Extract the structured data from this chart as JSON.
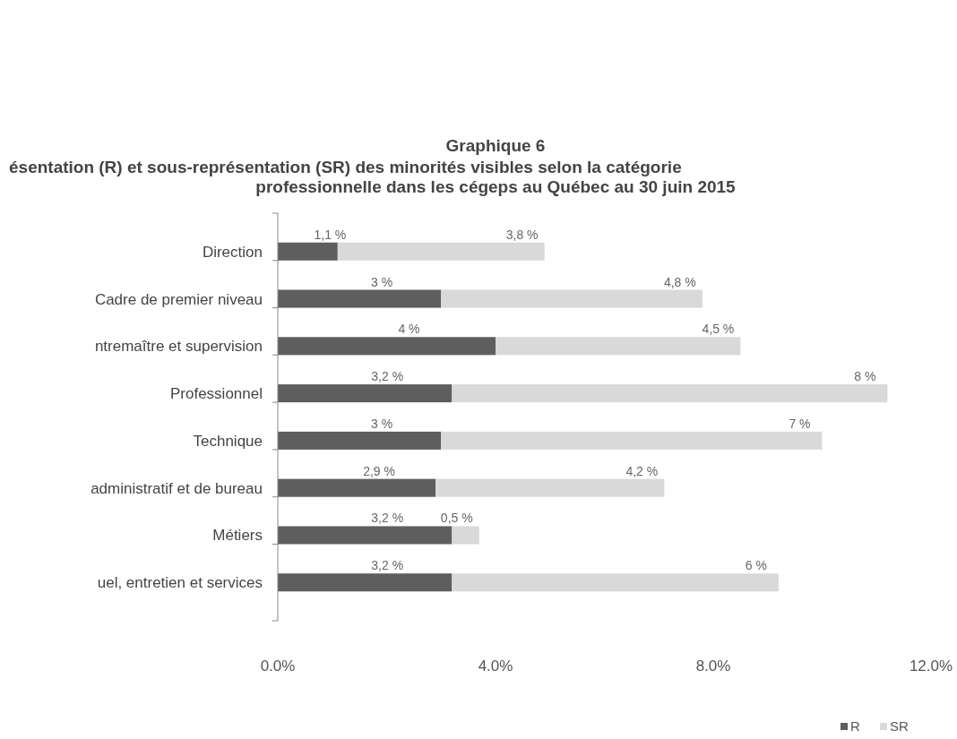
{
  "chart_data": {
    "type": "bar",
    "orientation": "horizontal",
    "stacked": true,
    "title": "Graphique 6",
    "subtitle": "ésentation (R) et sous-représentation (SR) des minorités visibles selon la catégorie\nprofessionnelle dans les cégeps au Québec au 30 juin 2015",
    "categories": [
      "Direction",
      "Cadre de premier niveau",
      "ntremaître et supervision",
      "Professionnel",
      "Technique",
      "administratif et de bureau",
      "Métiers",
      "uel, entretien et services"
    ],
    "series": [
      {
        "name": "R",
        "color": "#5e5e5e",
        "values": [
          1.1,
          3,
          4,
          3.2,
          3,
          2.9,
          3.2,
          3.2
        ],
        "value_labels": [
          "1,1 %",
          "3 %",
          "4 %",
          "3,2 %",
          "3 %",
          "2,9 %",
          "3,2 %",
          "3,2 %"
        ]
      },
      {
        "name": "SR",
        "color": "#d9d9d9",
        "values": [
          3.8,
          4.8,
          4.5,
          8,
          7,
          4.2,
          0.5,
          6
        ],
        "value_labels": [
          "3,8 %",
          "4,8 %",
          "4,5 %",
          "8 %",
          "7 %",
          "4,2 %",
          "0,5 %",
          "6 %"
        ]
      }
    ],
    "xlim": [
      0,
      12
    ],
    "xticks": [
      {
        "value": 0,
        "label": "0.0%"
      },
      {
        "value": 4,
        "label": "4.0%"
      },
      {
        "value": 8,
        "label": "8.0%"
      },
      {
        "value": 12,
        "label": "12.0%"
      }
    ],
    "legend": "bottom right"
  }
}
